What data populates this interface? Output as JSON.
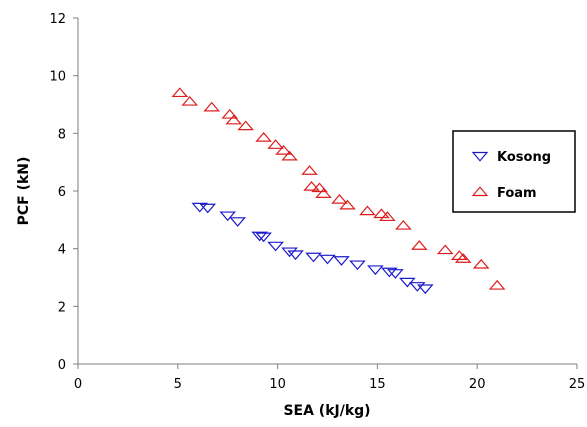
{
  "chart_data": {
    "type": "scatter",
    "xlabel": "SEA (kJ/kg)",
    "ylabel": "PCF (kN)",
    "xlim": [
      0,
      25
    ],
    "ylim": [
      0,
      12
    ],
    "xticks": [
      0,
      5,
      10,
      15,
      20,
      25
    ],
    "yticks": [
      0,
      2,
      4,
      6,
      8,
      10,
      12
    ],
    "grid": false,
    "legend_position": "right",
    "series": [
      {
        "name": "Kosong",
        "marker": "triangle-down",
        "color": "#1a1acc",
        "points": [
          [
            6.1,
            5.45
          ],
          [
            6.5,
            5.42
          ],
          [
            7.5,
            5.15
          ],
          [
            8.0,
            4.95
          ],
          [
            9.1,
            4.45
          ],
          [
            9.3,
            4.42
          ],
          [
            9.9,
            4.1
          ],
          [
            10.6,
            3.9
          ],
          [
            10.9,
            3.8
          ],
          [
            11.8,
            3.72
          ],
          [
            12.5,
            3.65
          ],
          [
            13.2,
            3.6
          ],
          [
            14.0,
            3.45
          ],
          [
            14.9,
            3.28
          ],
          [
            15.6,
            3.2
          ],
          [
            15.9,
            3.15
          ],
          [
            16.5,
            2.85
          ],
          [
            17.0,
            2.7
          ],
          [
            17.4,
            2.62
          ]
        ]
      },
      {
        "name": "Foam",
        "marker": "triangle-up",
        "color": "#dd1c1c",
        "points": [
          [
            5.1,
            9.4
          ],
          [
            5.6,
            9.1
          ],
          [
            6.7,
            8.9
          ],
          [
            7.6,
            8.65
          ],
          [
            7.8,
            8.45
          ],
          [
            8.4,
            8.25
          ],
          [
            9.3,
            7.85
          ],
          [
            9.9,
            7.6
          ],
          [
            10.3,
            7.4
          ],
          [
            10.6,
            7.2
          ],
          [
            11.6,
            6.7
          ],
          [
            11.7,
            6.15
          ],
          [
            12.1,
            6.1
          ],
          [
            12.3,
            5.9
          ],
          [
            13.1,
            5.7
          ],
          [
            13.5,
            5.5
          ],
          [
            14.5,
            5.3
          ],
          [
            15.2,
            5.2
          ],
          [
            15.5,
            5.1
          ],
          [
            16.3,
            4.8
          ],
          [
            17.1,
            4.1
          ],
          [
            18.4,
            3.95
          ],
          [
            19.1,
            3.75
          ],
          [
            19.3,
            3.65
          ],
          [
            20.2,
            3.45
          ],
          [
            21.0,
            2.72
          ]
        ]
      }
    ]
  }
}
